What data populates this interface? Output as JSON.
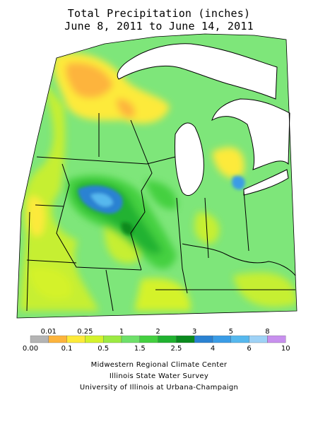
{
  "title": {
    "line1": "Total Precipitation (inches)",
    "line2": "June 8, 2011 to June 14, 2011"
  },
  "legend": {
    "bins": [
      {
        "from": 0.0,
        "to": 0.01,
        "color": "#b4b4b4"
      },
      {
        "from": 0.01,
        "to": 0.1,
        "color": "#fdb43c"
      },
      {
        "from": 0.1,
        "to": 0.25,
        "color": "#fdea3a"
      },
      {
        "from": 0.25,
        "to": 0.5,
        "color": "#d4f22c"
      },
      {
        "from": 0.5,
        "to": 1,
        "color": "#9cea42"
      },
      {
        "from": 1,
        "to": 1.5,
        "color": "#6ee06a"
      },
      {
        "from": 1.5,
        "to": 2,
        "color": "#44d040"
      },
      {
        "from": 2,
        "to": 2.5,
        "color": "#20b230"
      },
      {
        "from": 2.5,
        "to": 3,
        "color": "#0a8a1e"
      },
      {
        "from": 3,
        "to": 4,
        "color": "#2a82d2"
      },
      {
        "from": 4,
        "to": 5,
        "color": "#3a9ce6"
      },
      {
        "from": 5,
        "to": 6,
        "color": "#56b8ee"
      },
      {
        "from": 6,
        "to": 8,
        "color": "#9ed2f6"
      },
      {
        "from": 8,
        "to": 10,
        "color": "#c890ee"
      }
    ],
    "top_labels": [
      "0.01",
      "0.25",
      "1",
      "2",
      "3",
      "5",
      "8"
    ],
    "bottom_labels": [
      "0.00",
      "0.1",
      "0.5",
      "1.5",
      "2.5",
      "4",
      "6",
      "10"
    ]
  },
  "credits": {
    "line1": "Midwestern Regional Climate Center",
    "line2": "Illinois State Water Survey",
    "line3": "University of Illinois at Urbana-Champaign"
  },
  "colors": {
    "lake": "#ffffff",
    "border": "#000000",
    "base_precip": "#7ee67a"
  }
}
